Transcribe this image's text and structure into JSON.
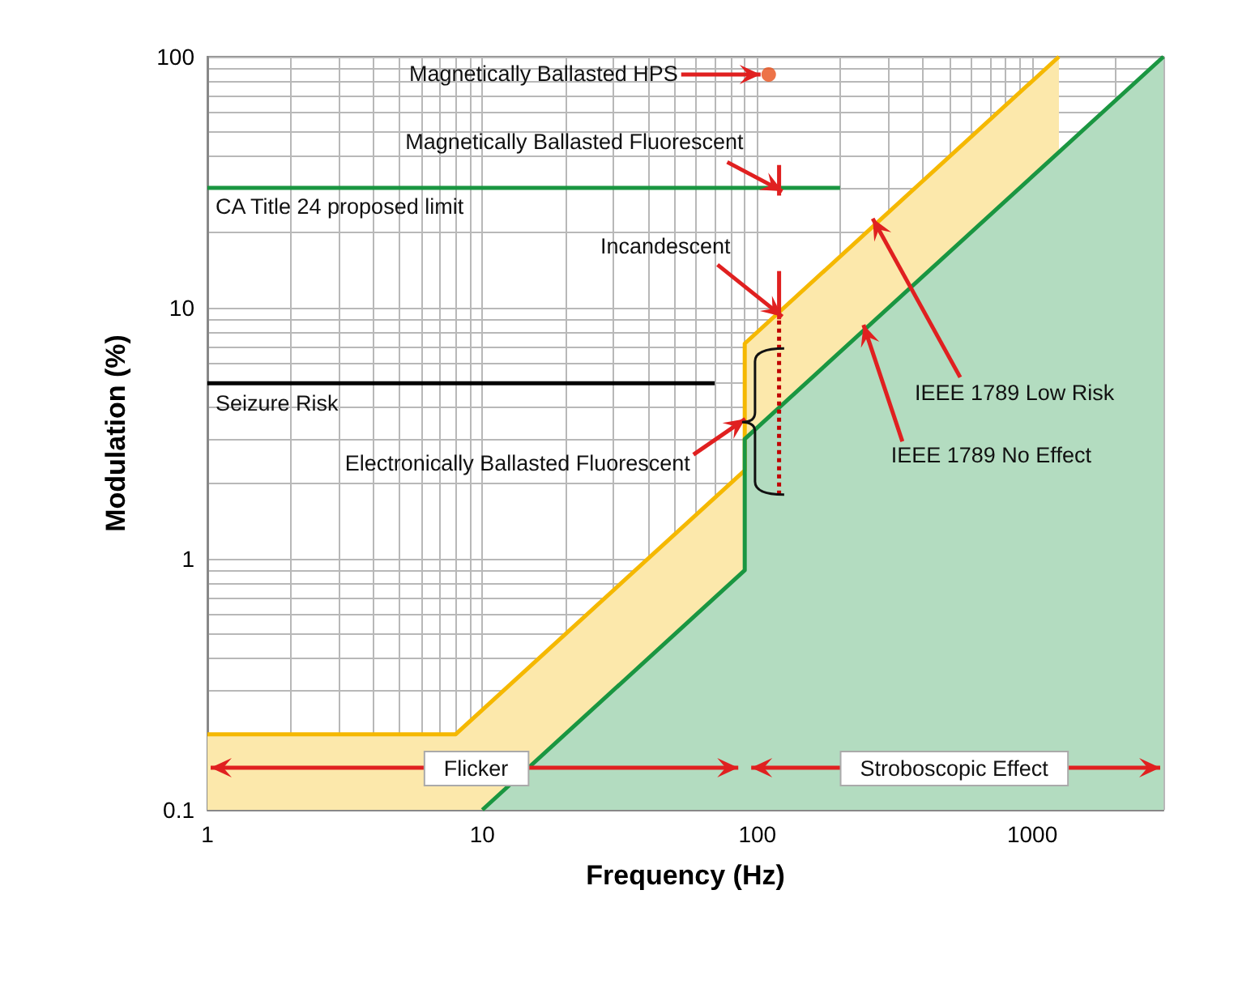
{
  "chart_data": {
    "type": "line",
    "xlabel": "Frequency (Hz)",
    "ylabel": "Modulation (%)",
    "log": "xy",
    "grid": true,
    "xlim": [
      1,
      3000
    ],
    "ylim": [
      0.1,
      100
    ],
    "xticks": [
      1,
      {
        "value": 2,
        "label": null
      },
      {
        "value": 3,
        "label": null
      },
      {
        "value": 4,
        "label": null
      },
      {
        "value": 5,
        "label": null
      },
      {
        "value": 6,
        "label": null
      },
      {
        "value": 7,
        "label": null
      },
      {
        "value": 8,
        "label": null
      },
      {
        "value": 9,
        "label": null
      },
      10,
      {
        "value": 20,
        "label": null
      },
      {
        "value": 30,
        "label": null
      },
      {
        "value": 40,
        "label": null
      },
      {
        "value": 50,
        "label": null
      },
      {
        "value": 60,
        "label": null
      },
      {
        "value": 70,
        "label": null
      },
      {
        "value": 80,
        "label": null
      },
      {
        "value": 90,
        "label": null
      },
      100,
      {
        "value": 200,
        "label": null
      },
      {
        "value": 300,
        "label": null
      },
      {
        "value": 400,
        "label": null
      },
      {
        "value": 500,
        "label": null
      },
      {
        "value": 600,
        "label": null
      },
      {
        "value": 700,
        "label": null
      },
      {
        "value": 800,
        "label": null
      },
      {
        "value": 900,
        "label": null
      },
      1000,
      {
        "value": 2000,
        "label": null
      },
      {
        "value": 3000,
        "label": null
      }
    ],
    "yticks": [
      0.1,
      {
        "value": 0.3,
        "label": null
      },
      {
        "value": 0.4,
        "label": null
      },
      {
        "value": 0.5,
        "label": null
      },
      {
        "value": 0.6,
        "label": null
      },
      {
        "value": 0.7,
        "label": null
      },
      {
        "value": 0.8,
        "label": null
      },
      {
        "value": 0.9,
        "label": null
      },
      1,
      {
        "value": 2,
        "label": null
      },
      {
        "value": 3,
        "label": null
      },
      {
        "value": 4,
        "label": null
      },
      {
        "value": 5,
        "label": null
      },
      {
        "value": 6,
        "label": null
      },
      {
        "value": 7,
        "label": null
      },
      {
        "value": 8,
        "label": null
      },
      {
        "value": 9,
        "label": null
      },
      10,
      {
        "value": 20,
        "label": null
      },
      {
        "value": 30,
        "label": null
      },
      {
        "value": 40,
        "label": null
      },
      {
        "value": 50,
        "label": null
      },
      {
        "value": 60,
        "label": null
      },
      {
        "value": 70,
        "label": null
      },
      {
        "value": 80,
        "label": null
      },
      {
        "value": 90,
        "label": null
      },
      100
    ],
    "series": [
      {
        "type": "area",
        "color": "#f5b800",
        "x": [
          1,
          8,
          90,
          90,
          1250
        ],
        "values": [
          0.2,
          0.2,
          2.25,
          7.2,
          100
        ]
      },
      {
        "type": "area",
        "color": "#1a9641",
        "x": [
          10,
          90,
          90,
          3000
        ],
        "values": [
          0.1,
          0.9,
          3,
          100
        ]
      },
      {
        "type": "line",
        "color": "#1a9641",
        "x": [
          1,
          200
        ],
        "values": [
          30,
          30
        ]
      },
      {
        "type": "line",
        "color": "#000000",
        "x": [
          1,
          70
        ],
        "values": [
          5,
          5
        ]
      },
      {
        "type": "line",
        "color": "#e02020",
        "x": [
          120,
          120
        ],
        "values": [
          28,
          37
        ]
      },
      {
        "type": "line",
        "color": "#e02020",
        "x": [
          120,
          120
        ],
        "values": [
          9,
          14
        ]
      },
      {
        "type": "line",
        "color": "#c00000",
        "line_style": "dotted",
        "x": [
          120,
          120
        ],
        "values": [
          1.8,
          9
        ]
      },
      {
        "type": "scatter",
        "color": "#e8501a",
        "x": [
          110
        ],
        "values": [
          85
        ]
      }
    ],
    "annotations": [
      "Magnetically Ballasted HPS",
      {
        "text": "Magnetically Ballasted Fluorescent",
        "x": 120,
        "y": 30
      },
      {
        "text": "CA Title 24 proposed limit",
        "x": 1,
        "y": 30
      },
      {
        "text": "Incandescent",
        "x": 120,
        "y": 9.5
      },
      {
        "text": "Seizure Risk",
        "x": 1,
        "y": 5
      },
      {
        "text": "Electronically Ballasted Fluorescent",
        "x": 88,
        "y": 3.5
      },
      {
        "text": "IEEE 1789 Low Risk",
        "x": 270,
        "y": 22
      },
      {
        "text": "IEEE 1789 No Effect",
        "x": 250,
        "y": 8.3
      },
      "Flicker",
      "Stroboscopic Effect"
    ]
  }
}
